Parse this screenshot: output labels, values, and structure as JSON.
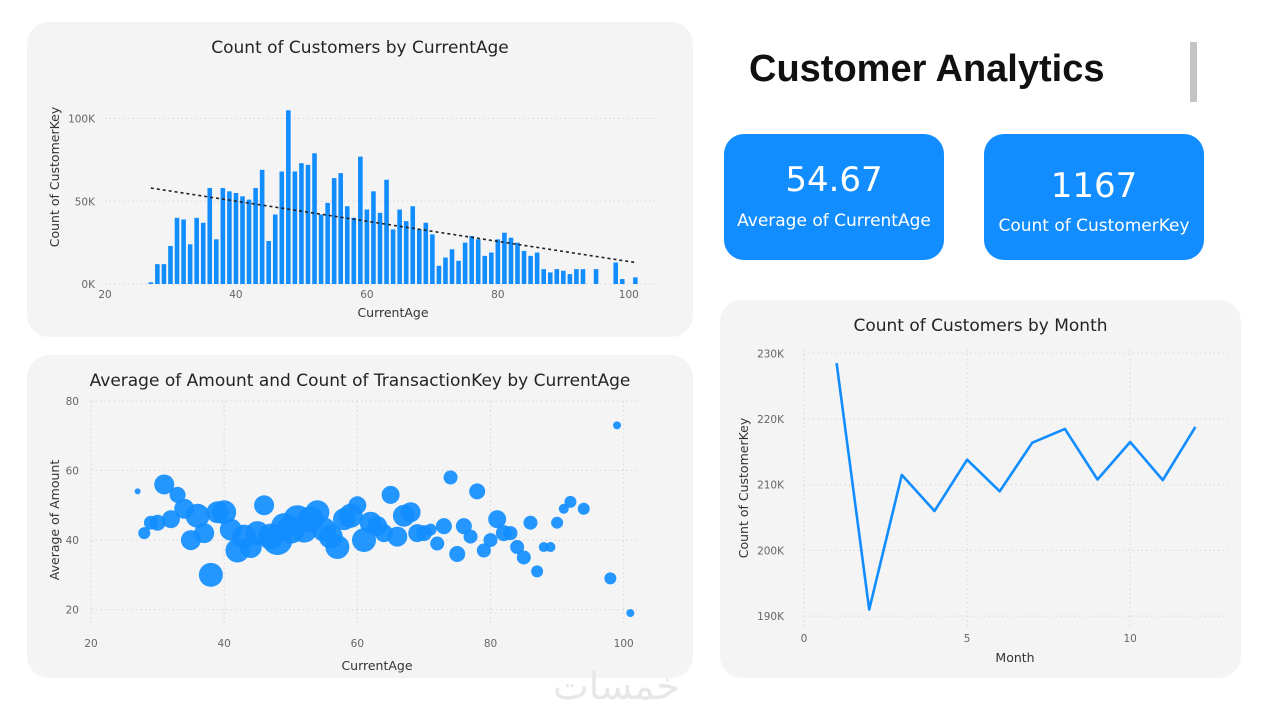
{
  "header": {
    "title": "Customer Analytics"
  },
  "kpis": [
    {
      "value": "54.67",
      "label": "Average of CurrentAge"
    },
    {
      "value": "1167",
      "label": "Count of CustomerKey"
    }
  ],
  "watermark": "خمسات",
  "colors": {
    "accent": "#118dff",
    "panel": "#f4f4f4",
    "trend": "#222222"
  },
  "chart_data": [
    {
      "id": "age-hist",
      "type": "bar",
      "title": "Count of Customers by CurrentAge",
      "xlabel": "CurrentAge",
      "ylabel": "Count of CustomerKey",
      "xlim": [
        20,
        104
      ],
      "ylim": [
        0,
        110000
      ],
      "xticks": [
        "20",
        "40",
        "60",
        "80",
        "100"
      ],
      "yticks": [
        "0K",
        "50K",
        "100K"
      ],
      "trendline": {
        "style": "dashed",
        "points": [
          [
            27,
            58000
          ],
          [
            101,
            13000
          ]
        ]
      },
      "x": [
        27,
        28,
        29,
        30,
        31,
        32,
        33,
        34,
        35,
        36,
        37,
        38,
        39,
        40,
        41,
        42,
        43,
        44,
        45,
        46,
        47,
        48,
        49,
        50,
        51,
        52,
        53,
        54,
        55,
        56,
        57,
        58,
        59,
        60,
        61,
        62,
        63,
        64,
        65,
        66,
        67,
        68,
        69,
        70,
        71,
        72,
        73,
        74,
        75,
        76,
        77,
        78,
        79,
        80,
        81,
        82,
        83,
        84,
        85,
        86,
        87,
        88,
        89,
        90,
        91,
        92,
        93,
        94,
        95,
        96,
        97,
        98,
        99,
        100,
        101
      ],
      "values": [
        1000,
        12000,
        12000,
        23000,
        40000,
        39000,
        24000,
        40000,
        37000,
        58000,
        27000,
        58000,
        56000,
        55000,
        53000,
        51000,
        58000,
        69000,
        26000,
        42000,
        68000,
        105000,
        68000,
        73000,
        72000,
        79000,
        42000,
        49000,
        64000,
        67000,
        47000,
        40000,
        77000,
        45000,
        56000,
        43000,
        63000,
        33000,
        45000,
        38000,
        47000,
        33000,
        37000,
        30000,
        11000,
        16000,
        21000,
        14000,
        25000,
        29000,
        27000,
        17000,
        19000,
        27000,
        31000,
        28000,
        25000,
        20000,
        17000,
        19000,
        9000,
        7000,
        9000,
        8000,
        6000,
        9000,
        9000,
        0,
        9000,
        0,
        0,
        13000,
        3000,
        0,
        4000
      ]
    },
    {
      "id": "amount-scatter",
      "type": "scatter",
      "title": "Average of Amount and Count of TransactionKey by CurrentAge",
      "xlabel": "CurrentAge",
      "ylabel": "Average of Amount",
      "xlim": [
        20,
        102
      ],
      "ylim": [
        15,
        80
      ],
      "xticks": [
        "20",
        "40",
        "60",
        "80",
        "100"
      ],
      "yticks": [
        "20",
        "40",
        "60",
        "80"
      ],
      "points": [
        {
          "x": 27,
          "y": 54,
          "size": 3
        },
        {
          "x": 28,
          "y": 42,
          "size": 6
        },
        {
          "x": 29,
          "y": 45,
          "size": 7
        },
        {
          "x": 30,
          "y": 45,
          "size": 8
        },
        {
          "x": 31,
          "y": 56,
          "size": 10
        },
        {
          "x": 32,
          "y": 46,
          "size": 9
        },
        {
          "x": 33,
          "y": 53,
          "size": 8
        },
        {
          "x": 34,
          "y": 49,
          "size": 10
        },
        {
          "x": 35,
          "y": 40,
          "size": 10
        },
        {
          "x": 36,
          "y": 47,
          "size": 12
        },
        {
          "x": 37,
          "y": 42,
          "size": 10
        },
        {
          "x": 38,
          "y": 30,
          "size": 12
        },
        {
          "x": 39,
          "y": 48,
          "size": 11
        },
        {
          "x": 40,
          "y": 48,
          "size": 12
        },
        {
          "x": 41,
          "y": 43,
          "size": 11
        },
        {
          "x": 42,
          "y": 37,
          "size": 12
        },
        {
          "x": 43,
          "y": 41,
          "size": 12
        },
        {
          "x": 44,
          "y": 38,
          "size": 11
        },
        {
          "x": 45,
          "y": 42,
          "size": 12
        },
        {
          "x": 46,
          "y": 50,
          "size": 10
        },
        {
          "x": 47,
          "y": 41,
          "size": 13
        },
        {
          "x": 48,
          "y": 40,
          "size": 15
        },
        {
          "x": 49,
          "y": 44,
          "size": 13
        },
        {
          "x": 50,
          "y": 43,
          "size": 14
        },
        {
          "x": 51,
          "y": 46,
          "size": 14
        },
        {
          "x": 52,
          "y": 43,
          "size": 13
        },
        {
          "x": 53,
          "y": 46,
          "size": 13
        },
        {
          "x": 54,
          "y": 48,
          "size": 12
        },
        {
          "x": 55,
          "y": 43,
          "size": 12
        },
        {
          "x": 56,
          "y": 41,
          "size": 12
        },
        {
          "x": 57,
          "y": 38,
          "size": 12
        },
        {
          "x": 58,
          "y": 46,
          "size": 11
        },
        {
          "x": 59,
          "y": 47,
          "size": 12
        },
        {
          "x": 60,
          "y": 50,
          "size": 9
        },
        {
          "x": 61,
          "y": 40,
          "size": 12
        },
        {
          "x": 62,
          "y": 45,
          "size": 11
        },
        {
          "x": 63,
          "y": 44,
          "size": 10
        },
        {
          "x": 64,
          "y": 42,
          "size": 9
        },
        {
          "x": 65,
          "y": 53,
          "size": 9
        },
        {
          "x": 66,
          "y": 41,
          "size": 10
        },
        {
          "x": 67,
          "y": 47,
          "size": 11
        },
        {
          "x": 68,
          "y": 48,
          "size": 10
        },
        {
          "x": 69,
          "y": 42,
          "size": 9
        },
        {
          "x": 70,
          "y": 42,
          "size": 8
        },
        {
          "x": 71,
          "y": 43,
          "size": 6
        },
        {
          "x": 72,
          "y": 39,
          "size": 7
        },
        {
          "x": 73,
          "y": 44,
          "size": 8
        },
        {
          "x": 74,
          "y": 58,
          "size": 7
        },
        {
          "x": 75,
          "y": 36,
          "size": 8
        },
        {
          "x": 76,
          "y": 44,
          "size": 8
        },
        {
          "x": 77,
          "y": 41,
          "size": 7
        },
        {
          "x": 78,
          "y": 54,
          "size": 8
        },
        {
          "x": 79,
          "y": 37,
          "size": 7
        },
        {
          "x": 80,
          "y": 40,
          "size": 7
        },
        {
          "x": 81,
          "y": 46,
          "size": 9
        },
        {
          "x": 82,
          "y": 42,
          "size": 8
        },
        {
          "x": 83,
          "y": 42,
          "size": 7
        },
        {
          "x": 84,
          "y": 38,
          "size": 7
        },
        {
          "x": 85,
          "y": 35,
          "size": 7
        },
        {
          "x": 86,
          "y": 45,
          "size": 7
        },
        {
          "x": 87,
          "y": 31,
          "size": 6
        },
        {
          "x": 88,
          "y": 38,
          "size": 5
        },
        {
          "x": 89,
          "y": 38,
          "size": 5
        },
        {
          "x": 90,
          "y": 45,
          "size": 6
        },
        {
          "x": 91,
          "y": 49,
          "size": 5
        },
        {
          "x": 92,
          "y": 51,
          "size": 6
        },
        {
          "x": 94,
          "y": 49,
          "size": 6
        },
        {
          "x": 98,
          "y": 29,
          "size": 6
        },
        {
          "x": 99,
          "y": 73,
          "size": 4
        },
        {
          "x": 101,
          "y": 19,
          "size": 4
        }
      ]
    },
    {
      "id": "month-line",
      "type": "line",
      "title": "Count of Customers by Month",
      "xlabel": "Month",
      "ylabel": "Count of CustomerKey",
      "xlim": [
        0,
        13
      ],
      "ylim": [
        188500,
        230500
      ],
      "xticks": [
        "0",
        "5",
        "10"
      ],
      "yticks": [
        "190K",
        "200K",
        "210K",
        "220K",
        "230K"
      ],
      "x": [
        1,
        2,
        3,
        4,
        5,
        6,
        7,
        8,
        9,
        10,
        11,
        12
      ],
      "values": [
        228500,
        191000,
        211500,
        206000,
        213800,
        209000,
        216400,
        218500,
        210800,
        216500,
        210700,
        218800
      ]
    }
  ]
}
